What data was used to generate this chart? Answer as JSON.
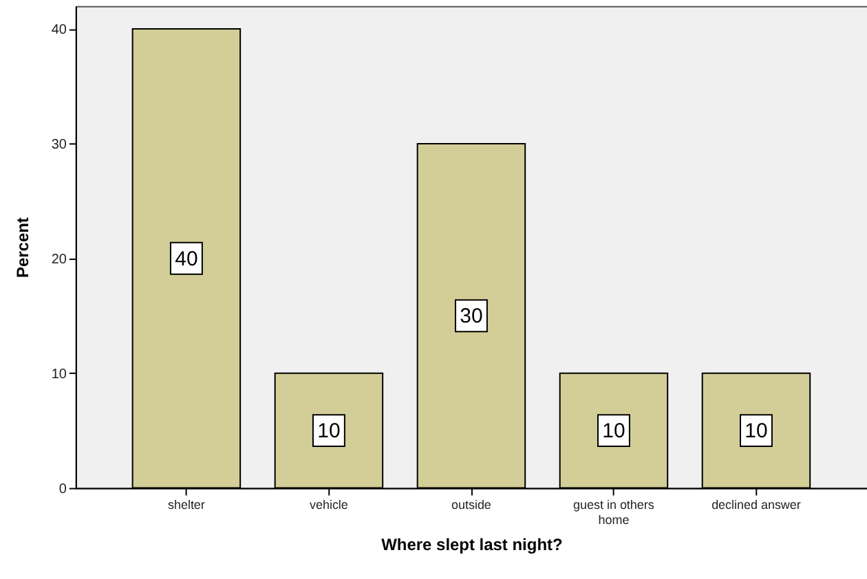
{
  "chart_data": {
    "type": "bar",
    "xlabel": "Where slept last night?",
    "ylabel": "Percent",
    "categories": [
      "shelter",
      "vehicle",
      "outside",
      "guest in others home",
      "declined answer"
    ],
    "values": [
      40,
      10,
      30,
      10,
      10
    ],
    "color": "#d3ce97",
    "ylim": [
      0,
      42
    ],
    "yticks": [
      0,
      10,
      20,
      30,
      40
    ],
    "data_labels": true,
    "grid": false
  }
}
